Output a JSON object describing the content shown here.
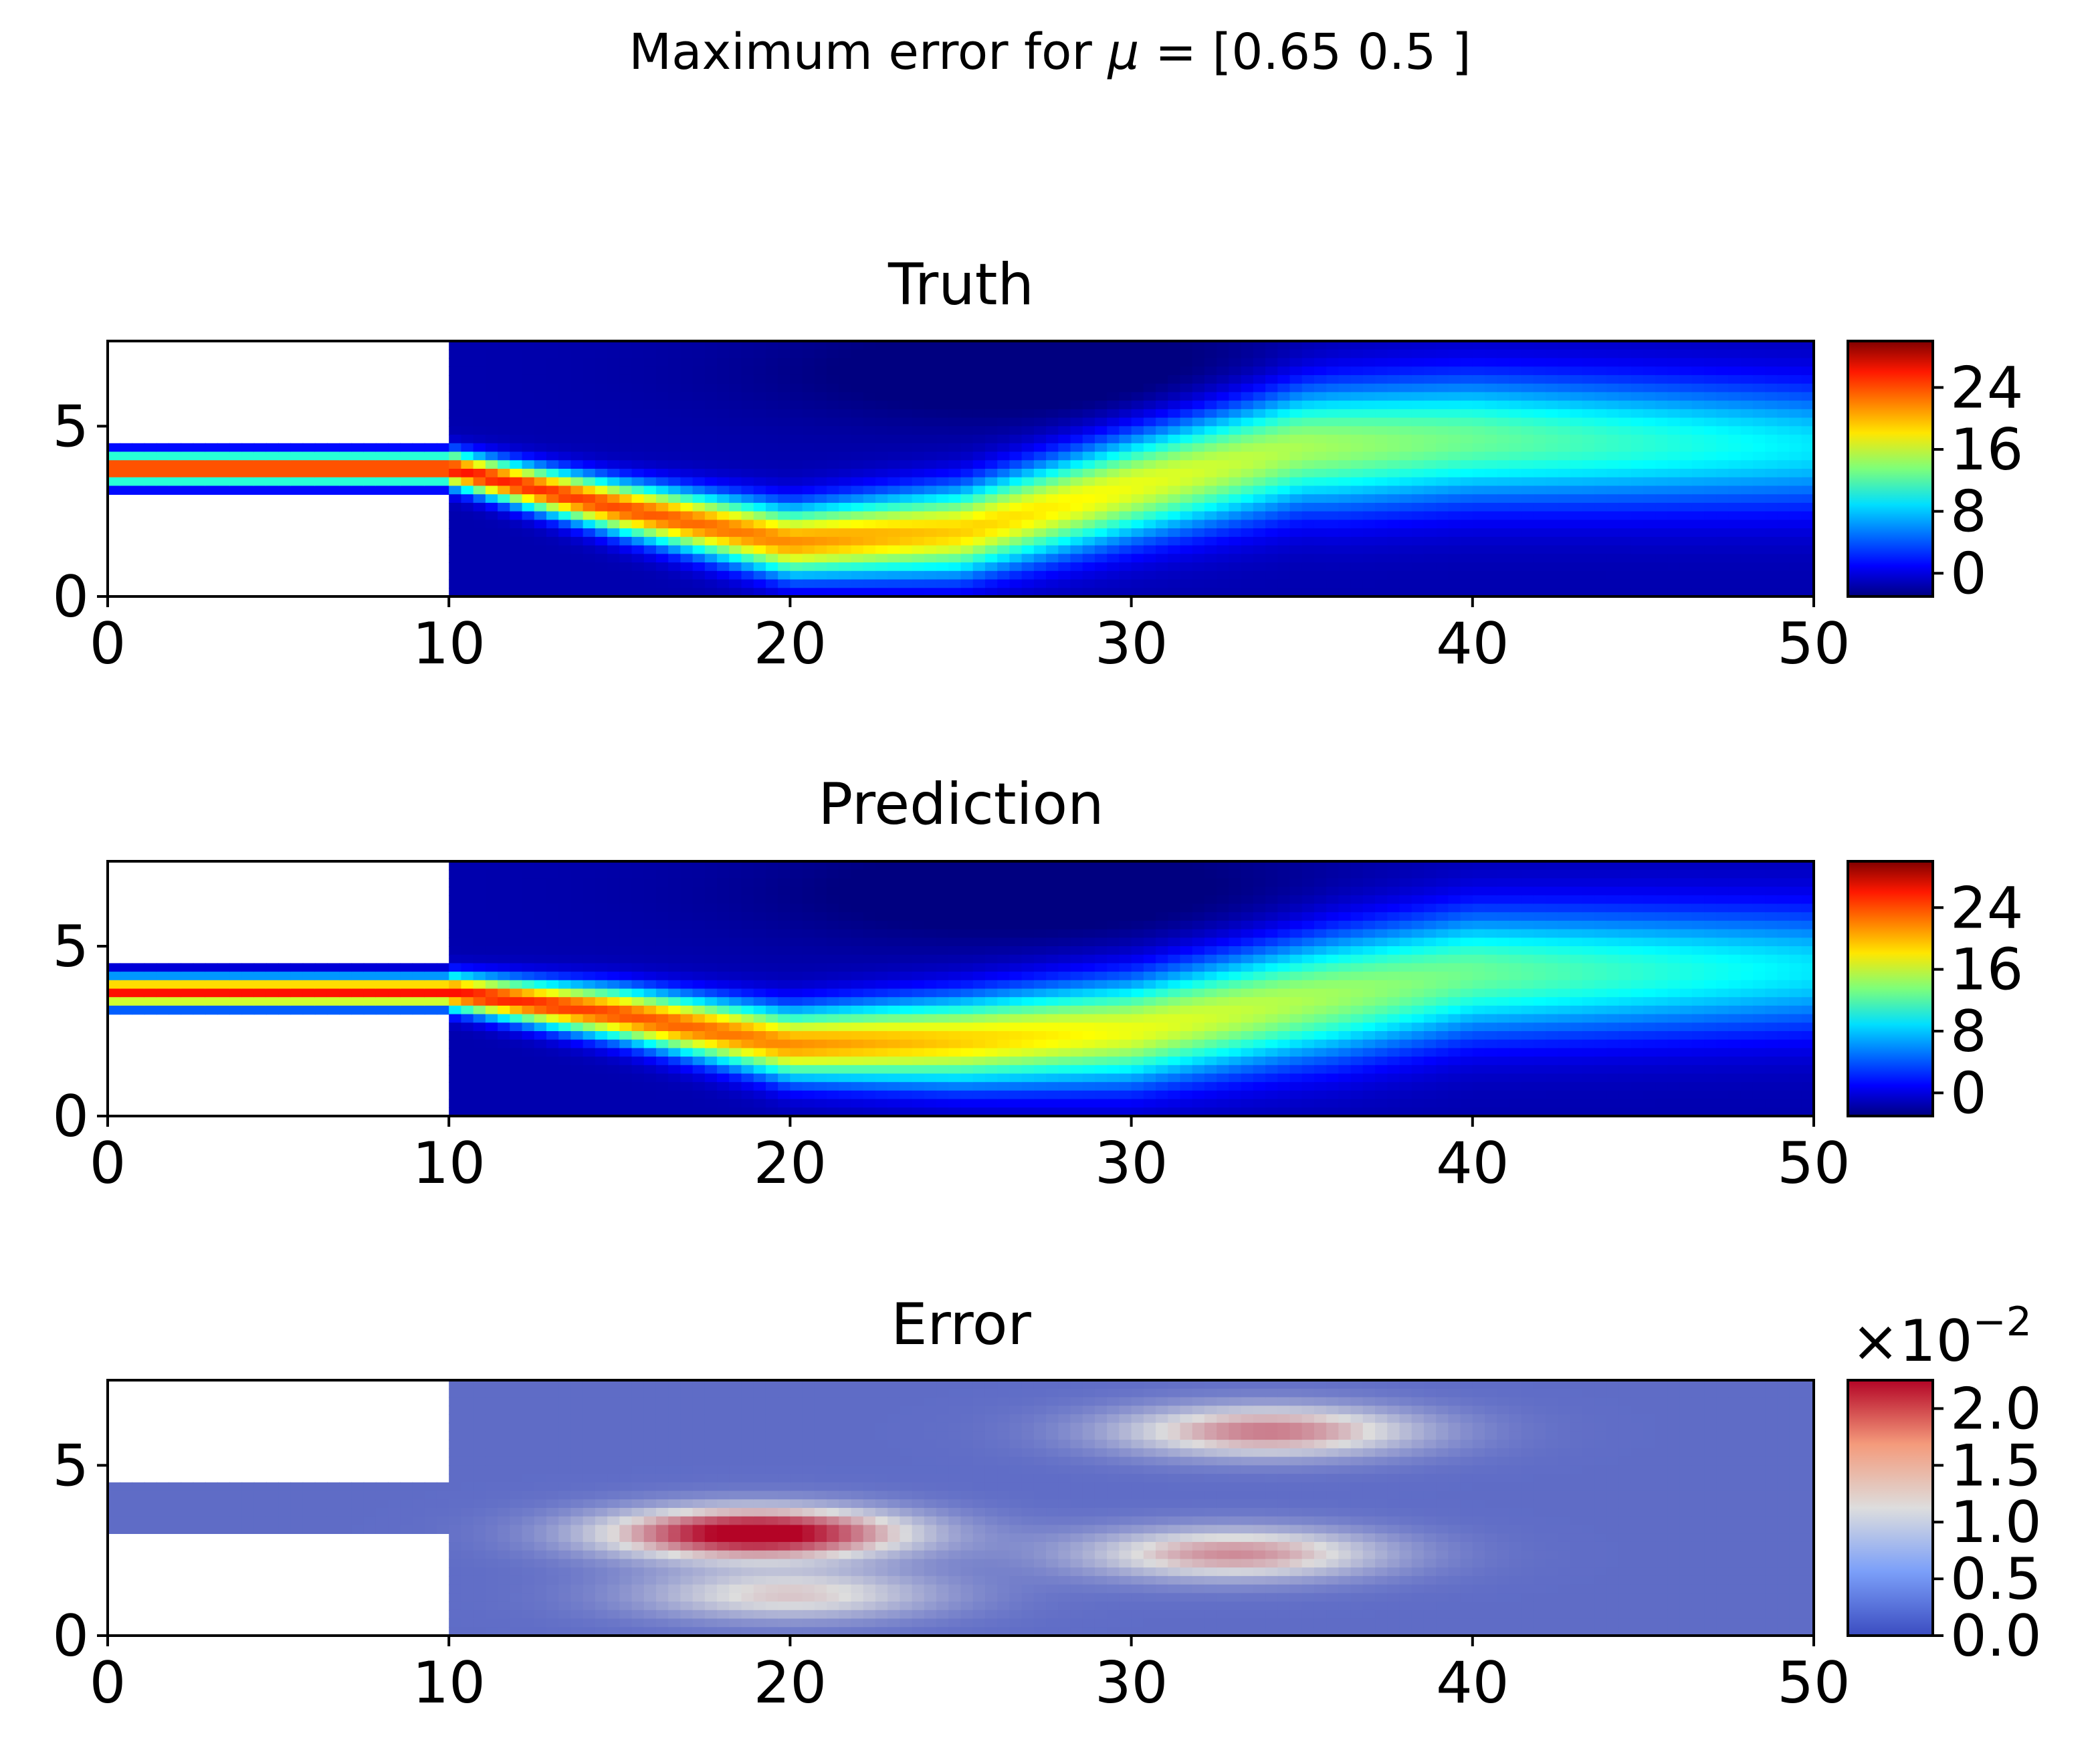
{
  "figure": {
    "suptitle_prefix": "Maximum error for ",
    "suptitle_symbol": "μ",
    "suptitle_suffix": " = [0.65 0.5 ]"
  },
  "chart_data": [
    {
      "type": "heatmap",
      "title": "Truth",
      "xlabel": "",
      "ylabel": "",
      "xlim": [
        0,
        50
      ],
      "ylim": [
        0,
        7.5
      ],
      "xticks": [
        "0",
        "10",
        "20",
        "30",
        "40",
        "50"
      ],
      "yticks": [
        "0",
        "5"
      ],
      "colormap": "jet",
      "colorbar": {
        "range": [
          -3,
          30
        ],
        "ticks": [
          "0",
          "8",
          "16",
          "24"
        ],
        "ticklabels": [
          "0",
          "8",
          "16",
          "24"
        ]
      },
      "field": {
        "inlet": "0<=x<=10, 3.1<=y<=4.4",
        "jet_peak": 27,
        "jet_path_y": [
          [
            0,
            3.75
          ],
          [
            10,
            3.75
          ],
          [
            15,
            2.6
          ],
          [
            20,
            1.6
          ],
          [
            25,
            1.9
          ],
          [
            30,
            3.2
          ],
          [
            35,
            4.4
          ],
          [
            40,
            4.6
          ],
          [
            50,
            4.4
          ]
        ]
      }
    },
    {
      "type": "heatmap",
      "title": "Prediction",
      "xlabel": "",
      "ylabel": "",
      "xlim": [
        0,
        50
      ],
      "ylim": [
        0,
        7.5
      ],
      "xticks": [
        "0",
        "10",
        "20",
        "30",
        "40",
        "50"
      ],
      "yticks": [
        "0",
        "5"
      ],
      "colormap": "jet",
      "colorbar": {
        "range": [
          -3,
          30
        ],
        "ticks": [
          "0",
          "8",
          "16",
          "24"
        ],
        "ticklabels": [
          "0",
          "8",
          "16",
          "24"
        ]
      },
      "field": {
        "inlet": "0<=x<=10, 3.1<=y<=4.4",
        "jet_peak": 27,
        "jet_path_y": [
          [
            0,
            3.65
          ],
          [
            10,
            3.65
          ],
          [
            15,
            3.0
          ],
          [
            20,
            2.1
          ],
          [
            25,
            2.2
          ],
          [
            30,
            2.5
          ],
          [
            35,
            3.4
          ],
          [
            40,
            4.2
          ],
          [
            50,
            4.3
          ]
        ]
      }
    },
    {
      "type": "heatmap",
      "title": "Error",
      "xlabel": "",
      "ylabel": "",
      "xlim": [
        0,
        50
      ],
      "ylim": [
        0,
        7.5
      ],
      "xticks": [
        "0",
        "10",
        "20",
        "30",
        "40",
        "50"
      ],
      "yticks": [
        "0",
        "5"
      ],
      "colormap": "coolwarm",
      "colorbar": {
        "range": [
          0,
          2.25
        ],
        "ticks": [
          "0.0",
          "0.5",
          "1.0",
          "1.5",
          "2.0"
        ],
        "ticklabels": [
          "0.0",
          "0.5",
          "1.0",
          "1.5",
          "2.0"
        ],
        "offset_base": "×10",
        "offset_exp": "−2"
      },
      "field": {
        "hotspots": [
          [
            19,
            3.0,
            2.2
          ],
          [
            34,
            6.0,
            1.4
          ],
          [
            33,
            2.4,
            1.3
          ],
          [
            20,
            1.2,
            1.0
          ]
        ]
      }
    }
  ]
}
